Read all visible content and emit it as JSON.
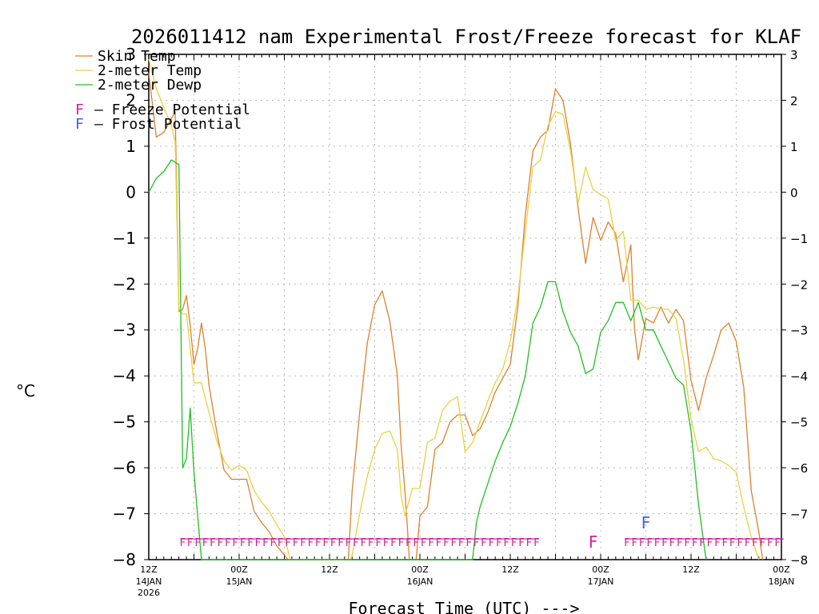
{
  "chart_data": {
    "type": "line",
    "title": "2026011412 nam Experimental Frost/Freeze forecast for KLAF",
    "ylabel": "°C",
    "xlabel": "Forecast Time (UTC) --->",
    "ylim": [
      -8,
      3
    ],
    "yticks": [
      3,
      2,
      1,
      0,
      -1,
      -2,
      -3,
      -4,
      -5,
      -6,
      -7,
      -8
    ],
    "xlim": [
      0,
      84
    ],
    "x_unit": "forecast hour",
    "xticks": [
      {
        "x": 0,
        "label": "12Z",
        "sub": "14JAN",
        "sub2": "2026"
      },
      {
        "x": 12,
        "label": "00Z",
        "sub": "15JAN",
        "sub2": ""
      },
      {
        "x": 24,
        "label": "12Z",
        "sub": "",
        "sub2": ""
      },
      {
        "x": 36,
        "label": "00Z",
        "sub": "16JAN",
        "sub2": ""
      },
      {
        "x": 48,
        "label": "12Z",
        "sub": "",
        "sub2": ""
      },
      {
        "x": 60,
        "label": "00Z",
        "sub": "17JAN",
        "sub2": ""
      },
      {
        "x": 72,
        "label": "12Z",
        "sub": "",
        "sub2": ""
      },
      {
        "x": 84,
        "label": "00Z",
        "sub": "18JAN",
        "sub2": ""
      }
    ],
    "grid": true,
    "legend_position": "top-left",
    "series": [
      {
        "name": "Skin Temp",
        "color": "#e0802c",
        "points": [
          [
            0,
            2.6
          ],
          [
            1,
            1.2
          ],
          [
            2,
            1.3
          ],
          [
            3,
            1.6
          ],
          [
            3.5,
            1.75
          ],
          [
            4,
            -2.6
          ],
          [
            4.5,
            -2.55
          ],
          [
            5,
            -2.25
          ],
          [
            5.5,
            -2.9
          ],
          [
            6,
            -3.75
          ],
          [
            6.5,
            -3.4
          ],
          [
            7,
            -2.85
          ],
          [
            7.5,
            -3.4
          ],
          [
            8,
            -4.2
          ],
          [
            9,
            -5.2
          ],
          [
            10,
            -6.05
          ],
          [
            11,
            -6.25
          ],
          [
            12,
            -6.25
          ],
          [
            13,
            -6.25
          ],
          [
            14,
            -6.95
          ],
          [
            15,
            -7.2
          ],
          [
            16,
            -7.4
          ],
          [
            17,
            -7.7
          ],
          [
            18,
            -7.9
          ],
          [
            18.5,
            -8
          ],
          [
            26.5,
            -8
          ],
          [
            27,
            -6.5
          ],
          [
            28,
            -4.8
          ],
          [
            29,
            -3.3
          ],
          [
            30,
            -2.45
          ],
          [
            31,
            -2.15
          ],
          [
            32,
            -2.8
          ],
          [
            33,
            -4.0
          ],
          [
            33.5,
            -5.5
          ],
          [
            34,
            -6.5
          ],
          [
            34.3,
            -7.2
          ],
          [
            34.6,
            -8
          ],
          [
            35.5,
            -8
          ],
          [
            36,
            -7.05
          ],
          [
            37,
            -6.85
          ],
          [
            38,
            -5.6
          ],
          [
            39,
            -5.45
          ],
          [
            40,
            -5.0
          ],
          [
            41,
            -4.85
          ],
          [
            42,
            -4.85
          ],
          [
            43,
            -5.3
          ],
          [
            44,
            -5.15
          ],
          [
            45,
            -4.8
          ],
          [
            46,
            -4.35
          ],
          [
            47,
            -4.05
          ],
          [
            48,
            -3.75
          ],
          [
            49,
            -2.5
          ],
          [
            50,
            -0.5
          ],
          [
            51,
            0.9
          ],
          [
            52,
            1.2
          ],
          [
            53,
            1.35
          ],
          [
            54,
            2.25
          ],
          [
            55,
            2.0
          ],
          [
            56,
            1.05
          ],
          [
            57,
            -0.35
          ],
          [
            58,
            -1.55
          ],
          [
            59,
            -0.55
          ],
          [
            60,
            -1.05
          ],
          [
            61,
            -0.65
          ],
          [
            62,
            -0.9
          ],
          [
            63,
            -1.95
          ],
          [
            64,
            -1.15
          ],
          [
            64.5,
            -3.0
          ],
          [
            65,
            -3.65
          ],
          [
            66,
            -2.75
          ],
          [
            67,
            -2.85
          ],
          [
            68,
            -2.5
          ],
          [
            69,
            -2.85
          ],
          [
            70,
            -2.55
          ],
          [
            71,
            -2.8
          ],
          [
            72,
            -4.1
          ],
          [
            73,
            -4.75
          ],
          [
            74,
            -4.05
          ],
          [
            75,
            -3.55
          ],
          [
            76,
            -3.0
          ],
          [
            77,
            -2.85
          ],
          [
            78,
            -3.25
          ],
          [
            79,
            -4.25
          ],
          [
            80,
            -6.5
          ],
          [
            81,
            -7.4
          ],
          [
            81.5,
            -8
          ]
        ]
      },
      {
        "name": "2-meter Temp",
        "color": "#ecd040",
        "points": [
          [
            0,
            2.9
          ],
          [
            1,
            2.25
          ],
          [
            2,
            1.85
          ],
          [
            3,
            1.45
          ],
          [
            3.5,
            1.1
          ],
          [
            4,
            -2.55
          ],
          [
            4.5,
            -2.65
          ],
          [
            5,
            -2.65
          ],
          [
            6,
            -4.15
          ],
          [
            7,
            -4.15
          ],
          [
            8,
            -4.8
          ],
          [
            9,
            -5.4
          ],
          [
            10,
            -5.85
          ],
          [
            11,
            -6.05
          ],
          [
            12,
            -5.95
          ],
          [
            13,
            -6.05
          ],
          [
            14,
            -6.5
          ],
          [
            15,
            -6.75
          ],
          [
            16,
            -6.95
          ],
          [
            17,
            -7.25
          ],
          [
            18,
            -7.5
          ],
          [
            18.8,
            -8
          ],
          [
            26.8,
            -8
          ],
          [
            27,
            -7.9
          ],
          [
            28,
            -7.0
          ],
          [
            29,
            -6.2
          ],
          [
            30,
            -5.6
          ],
          [
            31,
            -5.25
          ],
          [
            32,
            -5.2
          ],
          [
            33,
            -5.6
          ],
          [
            33.5,
            -6.6
          ],
          [
            34,
            -7.05
          ],
          [
            35,
            -6.45
          ],
          [
            36,
            -6.45
          ],
          [
            37,
            -5.45
          ],
          [
            38,
            -5.35
          ],
          [
            39,
            -4.75
          ],
          [
            40,
            -4.55
          ],
          [
            41,
            -4.45
          ],
          [
            42,
            -5.65
          ],
          [
            43,
            -5.45
          ],
          [
            44,
            -5.0
          ],
          [
            45,
            -4.55
          ],
          [
            46,
            -4.15
          ],
          [
            47,
            -3.85
          ],
          [
            48,
            -3.25
          ],
          [
            49,
            -2.3
          ],
          [
            50,
            -0.85
          ],
          [
            51,
            0.55
          ],
          [
            52,
            0.7
          ],
          [
            53,
            1.45
          ],
          [
            54,
            1.75
          ],
          [
            55,
            1.7
          ],
          [
            56,
            0.9
          ],
          [
            57,
            -0.25
          ],
          [
            58,
            0.55
          ],
          [
            59,
            0.05
          ],
          [
            60,
            -0.05
          ],
          [
            61,
            -0.15
          ],
          [
            62,
            -1.05
          ],
          [
            63,
            -0.85
          ],
          [
            64,
            -2.35
          ],
          [
            65,
            -2.35
          ],
          [
            66,
            -2.55
          ],
          [
            67,
            -2.5
          ],
          [
            68,
            -2.55
          ],
          [
            69,
            -2.55
          ],
          [
            70,
            -2.75
          ],
          [
            71,
            -3.65
          ],
          [
            72,
            -4.95
          ],
          [
            73,
            -5.65
          ],
          [
            74,
            -5.55
          ],
          [
            75,
            -5.8
          ],
          [
            76,
            -5.85
          ],
          [
            77,
            -5.95
          ],
          [
            78,
            -6.1
          ],
          [
            79,
            -6.85
          ],
          [
            80,
            -7.5
          ],
          [
            81,
            -8
          ]
        ]
      },
      {
        "name": "2-meter Dewp",
        "color": "#20c020",
        "points": [
          [
            0,
            0.0
          ],
          [
            1,
            0.3
          ],
          [
            2,
            0.45
          ],
          [
            3,
            0.7
          ],
          [
            4,
            0.6
          ],
          [
            4.5,
            -6.0
          ],
          [
            5,
            -5.8
          ],
          [
            5.5,
            -4.7
          ],
          [
            6,
            -6.1
          ],
          [
            7,
            -8
          ],
          [
            43,
            -8
          ],
          [
            43.5,
            -7.2
          ],
          [
            44,
            -6.85
          ],
          [
            45,
            -6.35
          ],
          [
            46,
            -5.85
          ],
          [
            47,
            -5.45
          ],
          [
            48,
            -5.1
          ],
          [
            49,
            -4.6
          ],
          [
            50,
            -4.0
          ],
          [
            51,
            -2.85
          ],
          [
            52,
            -2.5
          ],
          [
            53,
            -1.95
          ],
          [
            54,
            -1.95
          ],
          [
            55,
            -2.6
          ],
          [
            56,
            -3.05
          ],
          [
            57,
            -3.35
          ],
          [
            58,
            -3.95
          ],
          [
            59,
            -3.85
          ],
          [
            60,
            -3.05
          ],
          [
            61,
            -2.8
          ],
          [
            62,
            -2.4
          ],
          [
            63,
            -2.4
          ],
          [
            64,
            -2.8
          ],
          [
            65,
            -2.4
          ],
          [
            66,
            -3.0
          ],
          [
            67,
            -3.0
          ],
          [
            68,
            -3.35
          ],
          [
            69,
            -3.7
          ],
          [
            70,
            -4.05
          ],
          [
            71,
            -4.2
          ],
          [
            72,
            -5.2
          ],
          [
            73,
            -6.8
          ],
          [
            74,
            -8
          ]
        ]
      }
    ],
    "markers": {
      "freeze_glyph": "F",
      "freeze_y": -7.55,
      "freeze_runs": [
        [
          4.5,
          51.5
        ],
        [
          63.5,
          84
        ]
      ],
      "freeze_single_x": 59,
      "frost_glyph": "F",
      "frost_x": 66,
      "frost_y": -7.2
    },
    "legend": [
      {
        "label": "Skin Temp",
        "color": "#e0802c"
      },
      {
        "label": "2-meter Temp",
        "color": "#ecd040"
      },
      {
        "label": "2-meter Dewp",
        "color": "#20c020"
      }
    ],
    "potential_legend": [
      {
        "glyph": "F",
        "label": "– Freeze Potential",
        "color": "#d020a0"
      },
      {
        "glyph": "F",
        "label": "– Frost Potential",
        "color": "#4060e0"
      }
    ]
  }
}
